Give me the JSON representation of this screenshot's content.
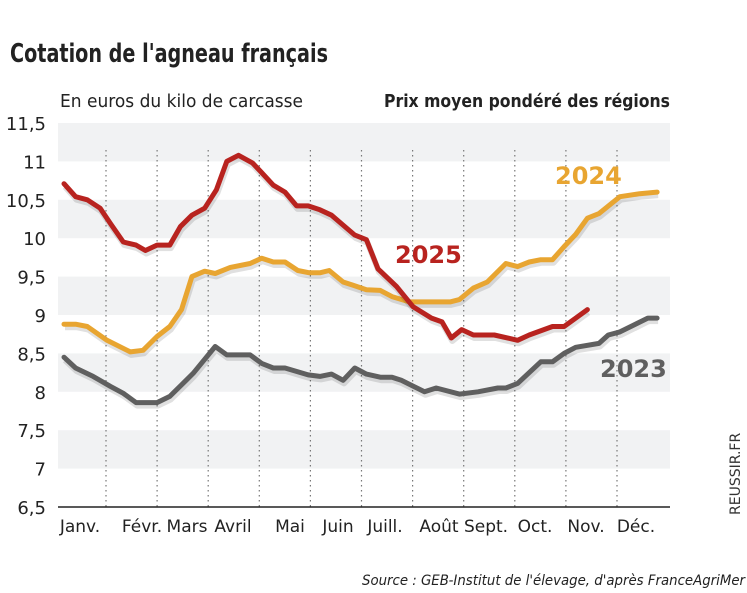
{
  "chart_data": {
    "type": "line",
    "title": "Cotation de l'agneau français",
    "subtitle_left": "En euros du kilo de carcasse",
    "subtitle_right": "Prix moyen pondéré des régions",
    "source": "Source : GEB-Institut de l'élevage, d'après FranceAgriMer",
    "credit": "REUSSIR.FR",
    "xlabel": "",
    "ylabel": "",
    "x_unit": "week of year",
    "xlim": [
      1,
      52
    ],
    "ylim": [
      6.5,
      11.5
    ],
    "y_ticks": [
      "11,5",
      "11",
      "10,5",
      "10",
      "9,5",
      "9",
      "8,5",
      "8",
      "7,5",
      "7",
      "6,5"
    ],
    "x_tick_labels": [
      "Janv.",
      "Févr.",
      "Mars",
      "Avril",
      "Mai",
      "Juin",
      "Juill.",
      "Août",
      "Sept.",
      "Oct.",
      "Nov.",
      "Déc."
    ],
    "grid": "alternating horizontal bands, dotted vertical month separators",
    "series": [
      {
        "name": "2025",
        "color": "#b8231f",
        "points": [
          [
            1,
            10.71
          ],
          [
            2,
            10.54
          ],
          [
            3,
            10.5
          ],
          [
            4.1,
            10.39
          ],
          [
            5,
            10.19
          ],
          [
            6.1,
            9.95
          ],
          [
            7.2,
            9.91
          ],
          [
            8,
            9.84
          ],
          [
            9,
            9.91
          ],
          [
            10.1,
            9.91
          ],
          [
            11,
            10.15
          ],
          [
            12,
            10.3
          ],
          [
            13.1,
            10.39
          ],
          [
            14.1,
            10.63
          ],
          [
            15,
            11.0
          ],
          [
            16,
            11.08
          ],
          [
            17.2,
            10.98
          ],
          [
            17.9,
            10.87
          ],
          [
            19,
            10.69
          ],
          [
            20,
            10.6
          ],
          [
            21,
            10.42
          ],
          [
            22,
            10.42
          ],
          [
            23,
            10.37
          ],
          [
            24,
            10.3
          ],
          [
            25,
            10.17
          ],
          [
            26,
            10.04
          ],
          [
            27,
            9.98
          ],
          [
            28,
            9.6
          ],
          [
            29.6,
            9.37
          ],
          [
            31,
            9.11
          ],
          [
            32.6,
            8.96
          ],
          [
            33.5,
            8.91
          ],
          [
            34.3,
            8.7
          ],
          [
            35.2,
            8.81
          ],
          [
            36.2,
            8.74
          ],
          [
            38,
            8.74
          ],
          [
            40,
            8.67
          ],
          [
            41,
            8.74
          ],
          [
            43,
            8.85
          ],
          [
            44,
            8.85
          ],
          [
            45,
            8.96
          ],
          [
            46,
            9.07
          ]
        ]
      },
      {
        "name": "2024",
        "color": "#e8a531",
        "points": [
          [
            1,
            8.88
          ],
          [
            2,
            8.88
          ],
          [
            3,
            8.85
          ],
          [
            4.7,
            8.67
          ],
          [
            6.7,
            8.52
          ],
          [
            7.8,
            8.54
          ],
          [
            9,
            8.72
          ],
          [
            10.1,
            8.85
          ],
          [
            11.1,
            9.07
          ],
          [
            12,
            9.5
          ],
          [
            13.1,
            9.57
          ],
          [
            14,
            9.54
          ],
          [
            15.3,
            9.62
          ],
          [
            17,
            9.67
          ],
          [
            18,
            9.74
          ],
          [
            19,
            9.69
          ],
          [
            20,
            9.69
          ],
          [
            21.1,
            9.58
          ],
          [
            22.1,
            9.55
          ],
          [
            23,
            9.55
          ],
          [
            23.8,
            9.58
          ],
          [
            25,
            9.43
          ],
          [
            25.8,
            9.39
          ],
          [
            27,
            9.33
          ],
          [
            28.2,
            9.32
          ],
          [
            29.2,
            9.24
          ],
          [
            30.7,
            9.17
          ],
          [
            34.2,
            9.17
          ],
          [
            35,
            9.2
          ],
          [
            36.2,
            9.35
          ],
          [
            37.4,
            9.43
          ],
          [
            39,
            9.67
          ],
          [
            40,
            9.63
          ],
          [
            41,
            9.69
          ],
          [
            42,
            9.72
          ],
          [
            43,
            9.72
          ],
          [
            44,
            9.89
          ],
          [
            45,
            10.05
          ],
          [
            46,
            10.26
          ],
          [
            47,
            10.32
          ],
          [
            48.8,
            10.54
          ],
          [
            50.5,
            10.58
          ],
          [
            52,
            10.6
          ]
        ]
      },
      {
        "name": "2023",
        "color": "#5f5f5f",
        "points": [
          [
            1,
            8.45
          ],
          [
            2,
            8.31
          ],
          [
            3.5,
            8.2
          ],
          [
            5,
            8.07
          ],
          [
            6.1,
            7.98
          ],
          [
            7.2,
            7.86
          ],
          [
            9,
            7.86
          ],
          [
            10.1,
            7.94
          ],
          [
            11.1,
            8.09
          ],
          [
            12.1,
            8.24
          ],
          [
            14,
            8.59
          ],
          [
            15,
            8.48
          ],
          [
            17,
            8.48
          ],
          [
            18,
            8.37
          ],
          [
            19,
            8.31
          ],
          [
            20,
            8.31
          ],
          [
            22,
            8.22
          ],
          [
            23,
            8.2
          ],
          [
            24,
            8.23
          ],
          [
            25,
            8.15
          ],
          [
            26,
            8.31
          ],
          [
            27,
            8.23
          ],
          [
            28.2,
            8.19
          ],
          [
            29.2,
            8.19
          ],
          [
            30,
            8.15
          ],
          [
            32,
            8.0
          ],
          [
            33,
            8.05
          ],
          [
            35,
            7.97
          ],
          [
            36.6,
            8.0
          ],
          [
            38.3,
            8.05
          ],
          [
            39,
            8.05
          ],
          [
            40,
            8.11
          ],
          [
            42,
            8.39
          ],
          [
            43,
            8.39
          ],
          [
            44,
            8.5
          ],
          [
            45,
            8.58
          ],
          [
            47,
            8.63
          ],
          [
            47.8,
            8.74
          ],
          [
            48.8,
            8.78
          ],
          [
            50,
            8.87
          ],
          [
            51.2,
            8.96
          ],
          [
            52,
            8.96
          ]
        ]
      }
    ]
  }
}
